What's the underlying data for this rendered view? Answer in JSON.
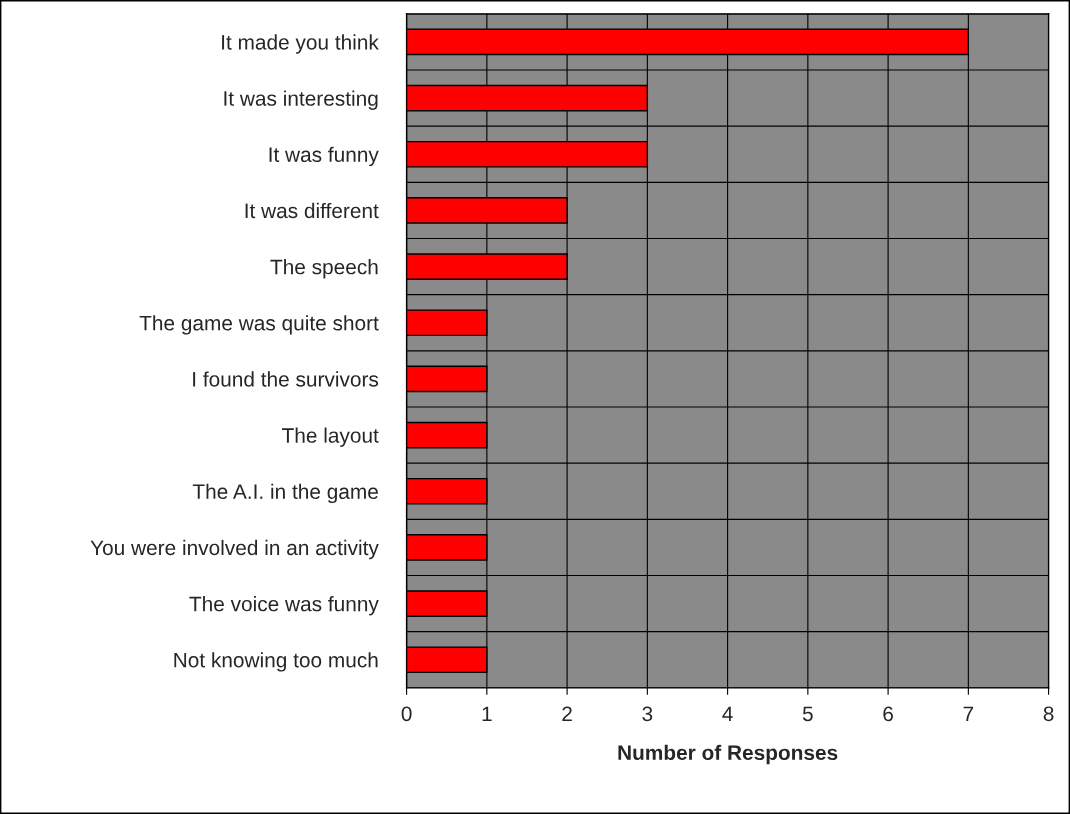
{
  "chart_data": {
    "type": "bar",
    "orientation": "horizontal",
    "xlabel": "Number of Responses",
    "categories": [
      "It made you think",
      "It was interesting",
      "It was funny",
      "It was different",
      "The speech",
      "The game was quite short",
      "I found the survivors",
      "The layout",
      "The A.I. in the game",
      "You were involved in an activity",
      "The voice was funny",
      "Not knowing too much"
    ],
    "values": [
      7,
      3,
      3,
      2,
      2,
      1,
      1,
      1,
      1,
      1,
      1,
      1
    ],
    "color": "#ff0000",
    "xlim": [
      0,
      8
    ],
    "xticks": [
      0,
      1,
      2,
      3,
      4,
      5,
      6,
      7,
      8
    ],
    "grid": true
  }
}
